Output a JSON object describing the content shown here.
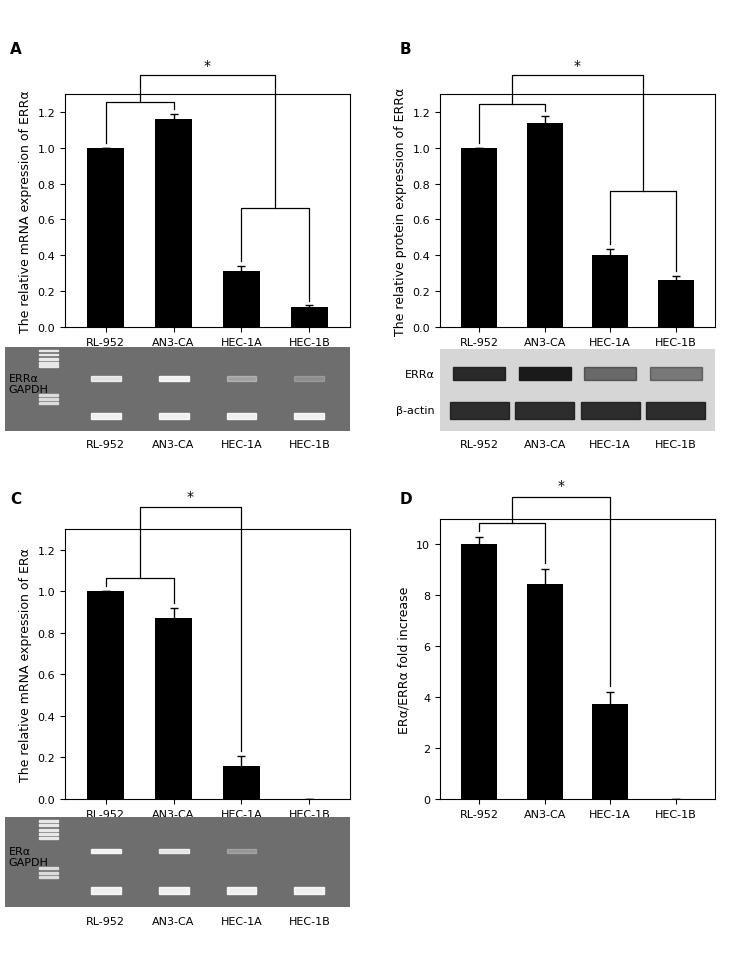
{
  "chart_data": [
    {
      "panel_label": "A",
      "type": "bar",
      "y_label": "The relative mRNA expression of ERRα",
      "categories": [
        "RL-952",
        "AN3-CA",
        "HEC-1A",
        "HEC-1B"
      ],
      "values": [
        1.0,
        1.16,
        0.31,
        0.11
      ],
      "errors": [
        0.0,
        0.03,
        0.03,
        0.01
      ],
      "color": "#000000",
      "ylim": [
        0,
        1.3
      ],
      "yticks": [
        {
          "value": 0,
          "label": "0.0"
        },
        {
          "value": 0.2,
          "label": "0.2"
        },
        {
          "value": 0.4,
          "label": "0.4"
        },
        {
          "value": 0.6,
          "label": "0.6"
        },
        {
          "value": 0.8,
          "label": "0.8"
        },
        {
          "value": 1.0,
          "label": "1.0"
        },
        {
          "value": 1.2,
          "label": "1.2"
        }
      ],
      "annotation": "*",
      "blot": {
        "style": "pcr",
        "rows": [
          "ERRα",
          "GAPDH"
        ],
        "lanes": [
          "RL-952",
          "AN3-CA",
          "HEC-1A",
          "HEC-1B"
        ]
      }
    },
    {
      "panel_label": "B",
      "type": "bar",
      "y_label": "The relative protein expression of ERRα",
      "categories": [
        "RL-952",
        "AN3-CA",
        "HEC-1A",
        "HEC-1B"
      ],
      "values": [
        1.0,
        1.14,
        0.4,
        0.26
      ],
      "errors": [
        0.0,
        0.04,
        0.035,
        0.025
      ],
      "color": "#000000",
      "ylim": [
        0,
        1.3
      ],
      "yticks": [
        {
          "value": 0,
          "label": "0.0"
        },
        {
          "value": 0.2,
          "label": "0.2"
        },
        {
          "value": 0.4,
          "label": "0.4"
        },
        {
          "value": 0.6,
          "label": "0.6"
        },
        {
          "value": 0.8,
          "label": "0.8"
        },
        {
          "value": 1.0,
          "label": "1.0"
        },
        {
          "value": 1.2,
          "label": "1.2"
        }
      ],
      "annotation": "*",
      "blot": {
        "style": "wb",
        "rows": [
          "ERRα",
          "β-actin"
        ],
        "lanes": [
          "RL-952",
          "AN3-CA",
          "HEC-1A",
          "HEC-1B"
        ]
      }
    },
    {
      "panel_label": "C",
      "type": "bar",
      "y_label": "The relative mRNA expression of ERα",
      "categories": [
        "RL-952",
        "AN3-CA",
        "HEC-1A",
        "HEC-1B"
      ],
      "values": [
        1.0,
        0.87,
        0.16,
        0.0
      ],
      "errors": [
        0.0,
        0.05,
        0.045,
        0.0
      ],
      "color": "#000000",
      "ylim": [
        0,
        1.3
      ],
      "yticks": [
        {
          "value": 0,
          "label": "0.0"
        },
        {
          "value": 0.2,
          "label": "0.2"
        },
        {
          "value": 0.4,
          "label": "0.4"
        },
        {
          "value": 0.6,
          "label": "0.6"
        },
        {
          "value": 0.8,
          "label": "0.8"
        },
        {
          "value": 1.0,
          "label": "1.0"
        },
        {
          "value": 1.2,
          "label": "1.2"
        }
      ],
      "annotation": "*",
      "blot": {
        "style": "pcr",
        "rows": [
          "ERα",
          "GAPDH"
        ],
        "lanes": [
          "RL-952",
          "AN3-CA",
          "HEC-1A",
          "HEC-1B"
        ]
      }
    },
    {
      "panel_label": "D",
      "type": "bar",
      "y_label": "ERα/ERRα fold increase",
      "categories": [
        "RL-952",
        "AN3-CA",
        "HEC-1A",
        "HEC-1B"
      ],
      "values": [
        10.0,
        8.45,
        3.75,
        0.0
      ],
      "errors": [
        0.3,
        0.6,
        0.45,
        0.0
      ],
      "color": "#000000",
      "ylim": [
        0,
        11
      ],
      "yticks": [
        0,
        2,
        4,
        6,
        8,
        10
      ],
      "annotation": "*"
    }
  ]
}
